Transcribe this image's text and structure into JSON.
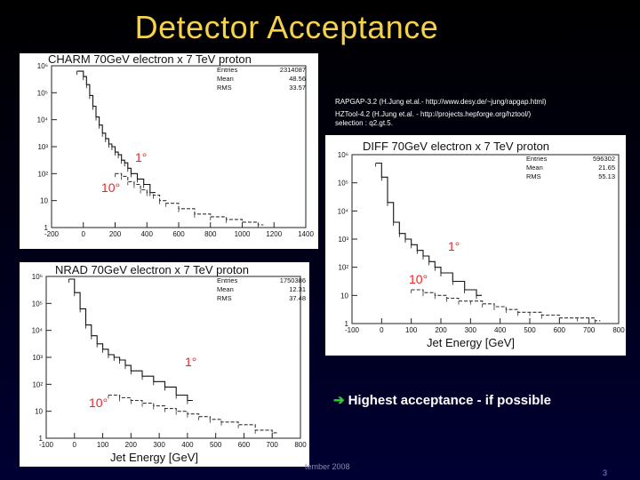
{
  "slide": {
    "title": "Detector Acceptance",
    "rapgap_note": "RAPGAP-3.2 (H.Jung et.al.- http://www.desy.de/~jung/rapgap.html)",
    "hztool_note_line1": "HZTool-4.2    (H.Jung et.al. - http://projects.hepforge.org/hztool/)",
    "hztool_note_line2": "selection : q2.gt.5.",
    "highlight_arrow": "➔",
    "highlight_text": "Highest acceptance - if possible",
    "footer_text": "tember 2008",
    "page_number": "3",
    "colors": {
      "title": "#f6d14a",
      "angle_labels": "#ee2222",
      "arrow": "#33cc33"
    }
  },
  "chart_data": [
    {
      "type": "histogram",
      "title": "CHARM  70GeV electron x 7 TeV proton",
      "xlabel": "",
      "log_y": true,
      "xlim": [
        -200,
        1400
      ],
      "ylim_exp": [
        0,
        6
      ],
      "x_ticks": [
        -200,
        0,
        200,
        400,
        600,
        800,
        1000,
        1200,
        1400
      ],
      "y_tick_labels": [
        "1",
        "10",
        "10²",
        "10³",
        "10⁴",
        "10⁵",
        "10⁶"
      ],
      "stats": {
        "entries_label": "Entries",
        "entries": "2314087",
        "mean_label": "Mean",
        "mean": "48.56",
        "rms_label": "RMS",
        "rms": "33.57"
      },
      "angle_labels": [
        "1°",
        "10°"
      ],
      "series": [
        {
          "name": "1°",
          "x": [
            -40,
            0,
            20,
            40,
            60,
            80,
            100,
            120,
            140,
            160,
            180,
            200,
            220,
            240,
            260,
            280,
            300,
            340,
            380,
            420
          ],
          "y": [
            5.8,
            5.6,
            5.3,
            4.9,
            4.5,
            4.1,
            3.8,
            3.5,
            3.3,
            3.1,
            3.0,
            2.8,
            2.7,
            2.5,
            2.4,
            2.2,
            2.0,
            1.8,
            1.6,
            1.3
          ]
        },
        {
          "name": "10°",
          "x": [
            200,
            240,
            280,
            320,
            360,
            400,
            440,
            480,
            520,
            600,
            700,
            800,
            900,
            1000,
            1100
          ],
          "y": [
            2.0,
            1.9,
            1.7,
            1.6,
            1.4,
            1.3,
            1.2,
            1.0,
            0.9,
            0.7,
            0.5,
            0.4,
            0.3,
            0.2,
            0.1
          ]
        }
      ]
    },
    {
      "type": "histogram",
      "title": "DIFF      70GeV electron x 7 TeV proton",
      "xlabel": "Jet Energy  [GeV]",
      "log_y": true,
      "xlim": [
        -100,
        800
      ],
      "ylim_exp": [
        0,
        6
      ],
      "x_ticks": [
        -100,
        0,
        100,
        200,
        300,
        400,
        500,
        600,
        700,
        800
      ],
      "y_tick_labels": [
        "1",
        "10",
        "10²",
        "10³",
        "10⁴",
        "10⁵",
        "10⁶"
      ],
      "stats": {
        "entries_label": "Entries",
        "entries": "596302",
        "mean_label": "Mean",
        "mean": "21.65",
        "rms_label": "RMS",
        "rms": "55.13"
      },
      "angle_labels": [
        "1°",
        "10°"
      ],
      "series": [
        {
          "name": "1°",
          "x": [
            -20,
            0,
            20,
            40,
            60,
            80,
            100,
            120,
            140,
            160,
            180,
            200,
            240,
            280,
            320
          ],
          "y": [
            5.7,
            5.2,
            4.3,
            3.6,
            3.2,
            3.0,
            2.8,
            2.6,
            2.4,
            2.2,
            2.0,
            1.8,
            1.5,
            1.2,
            1.0
          ]
        },
        {
          "name": "10°",
          "x": [
            100,
            140,
            180,
            220,
            260,
            300,
            340,
            380,
            420,
            460,
            500,
            540,
            600,
            660,
            720
          ],
          "y": [
            1.2,
            1.1,
            1.0,
            0.9,
            0.8,
            0.8,
            0.7,
            0.6,
            0.5,
            0.4,
            0.4,
            0.3,
            0.2,
            0.2,
            0.1
          ]
        }
      ]
    },
    {
      "type": "histogram",
      "title": "NRAD   70GeV electron x 7 TeV proton",
      "xlabel": "Jet Energy  [GeV]",
      "log_y": true,
      "xlim": [
        -100,
        800
      ],
      "ylim_exp": [
        0,
        6
      ],
      "x_ticks": [
        -100,
        0,
        100,
        200,
        300,
        400,
        500,
        600,
        700,
        800
      ],
      "y_tick_labels": [
        "1",
        "10",
        "10²",
        "10³",
        "10⁴",
        "10⁵",
        "10⁶"
      ],
      "stats": {
        "entries_label": "Entries",
        "entries": "1750386",
        "mean_label": "Mean",
        "mean": "12.31",
        "rms_label": "RMS",
        "rms": "37.48"
      },
      "angle_labels": [
        "1°",
        "10°"
      ],
      "series": [
        {
          "name": "1°",
          "x": [
            -20,
            0,
            20,
            40,
            60,
            80,
            100,
            120,
            140,
            160,
            180,
            200,
            240,
            280,
            320,
            360,
            400
          ],
          "y": [
            5.9,
            5.4,
            4.8,
            4.2,
            3.8,
            3.5,
            3.3,
            3.1,
            3.0,
            2.9,
            2.7,
            2.5,
            2.3,
            2.1,
            1.9,
            1.6,
            1.4
          ]
        },
        {
          "name": "10°",
          "x": [
            120,
            160,
            200,
            240,
            280,
            320,
            360,
            400,
            440,
            480,
            520,
            580,
            640,
            700
          ],
          "y": [
            1.6,
            1.5,
            1.4,
            1.3,
            1.2,
            1.1,
            1.0,
            0.9,
            0.8,
            0.7,
            0.6,
            0.5,
            0.3,
            0.2
          ]
        }
      ]
    }
  ]
}
